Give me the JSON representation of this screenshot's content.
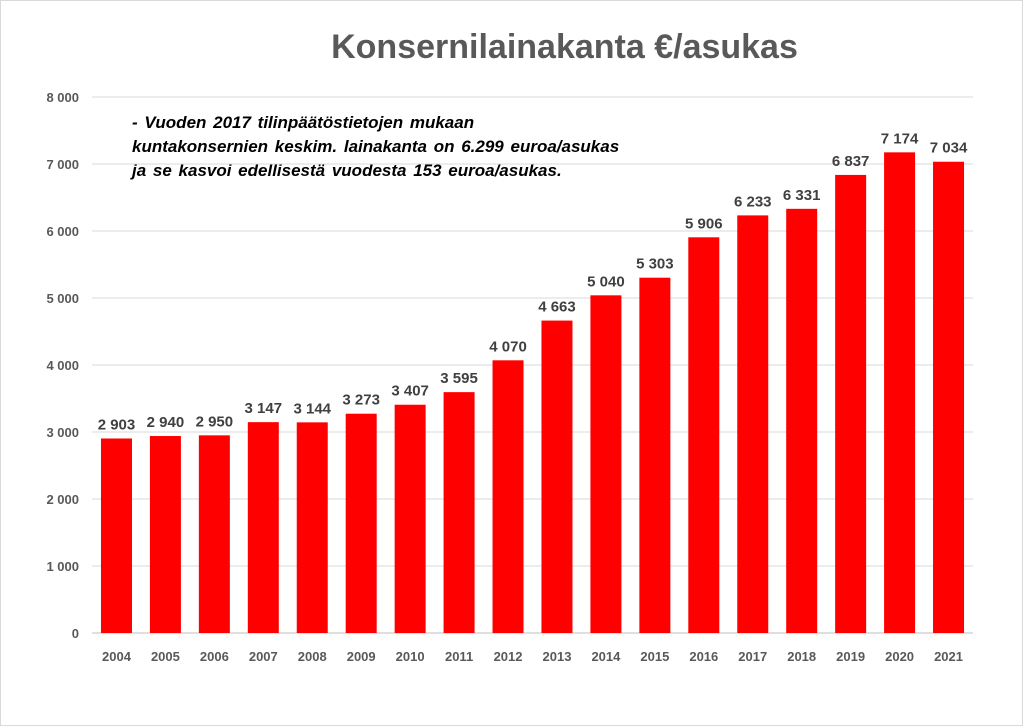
{
  "chart_data": {
    "type": "bar",
    "title": "Konsernilainakanta €/asukas",
    "xlabel": "",
    "ylabel": "",
    "categories": [
      "2004",
      "2005",
      "2006",
      "2007",
      "2008",
      "2009",
      "2010",
      "2011",
      "2012",
      "2013",
      "2014",
      "2015",
      "2016",
      "2017",
      "2018",
      "2019",
      "2020",
      "2021"
    ],
    "values": [
      2903,
      2940,
      2950,
      3147,
      3144,
      3273,
      3407,
      3595,
      4070,
      4663,
      5040,
      5303,
      5906,
      6233,
      6331,
      6837,
      7174,
      7034
    ],
    "value_labels": [
      "2 903",
      "2 940",
      "2 950",
      "3 147",
      "3 144",
      "3 273",
      "3 407",
      "3 595",
      "4 070",
      "4 663",
      "5 040",
      "5 303",
      "5 906",
      "6 233",
      "6 331",
      "6 837",
      "7 174",
      "7 034"
    ],
    "ylim": [
      0,
      8000
    ],
    "yticks": [
      0,
      1000,
      2000,
      3000,
      4000,
      5000,
      6000,
      7000,
      8000
    ],
    "ytick_labels": [
      "0",
      "1 000",
      "2 000",
      "3 000",
      "4 000",
      "5 000",
      "6 000",
      "7 000",
      "8 000"
    ],
    "grid": true,
    "legend": "none",
    "bar_color": "#ff0000",
    "annotation": [
      "- Vuoden 2017 tilinpäätöstietojen  mukaan",
      "kuntakonsernien  keskim.  lainakanta  on  6.299  euroa/asukas",
      "ja  se  kasvoi  edellisestä  vuodesta  153  euroa/asukas."
    ]
  }
}
